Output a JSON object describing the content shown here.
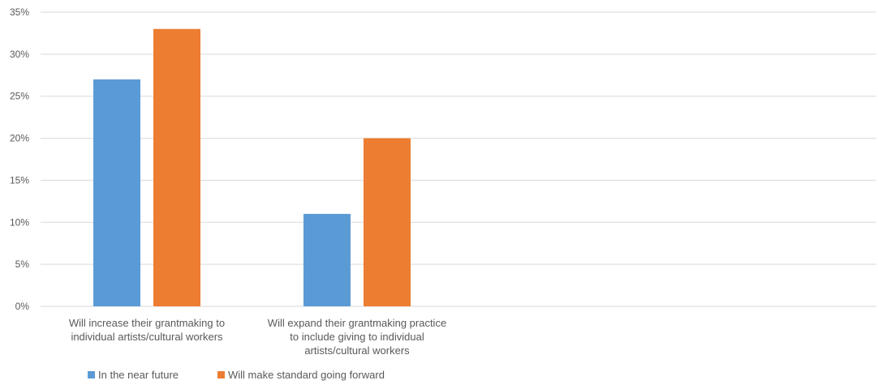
{
  "chart_data": {
    "type": "bar",
    "categories": [
      [
        "Will increase their grantmaking to",
        "individual artists/cultural workers"
      ],
      [
        "Will expand their grantmaking practice",
        "to include giving to individual",
        "artists/cultural workers"
      ]
    ],
    "series": [
      {
        "name": "In the near future",
        "values": [
          27,
          11
        ],
        "color": "#5B9BD5"
      },
      {
        "name": "Will make standard going forward",
        "values": [
          33,
          20
        ],
        "color": "#ED7D31"
      }
    ],
    "y_ticks": [
      "0%",
      "5%",
      "10%",
      "15%",
      "20%",
      "25%",
      "30%",
      "35%"
    ],
    "ylim": [
      0,
      35
    ],
    "y_unit": "%",
    "grid": true,
    "legend_position": "bottom-left",
    "gridline_color": "#D9D9D9"
  }
}
